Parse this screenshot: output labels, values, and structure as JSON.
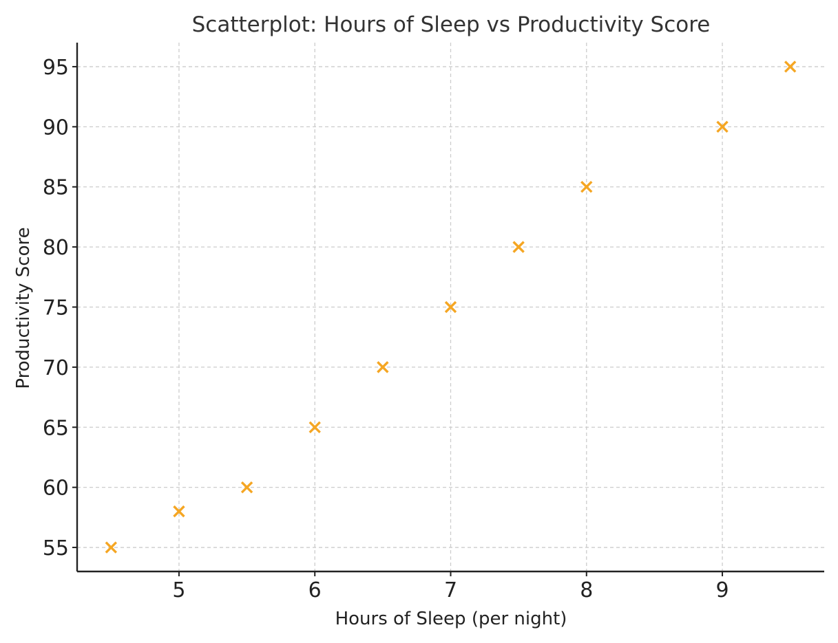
{
  "chart_data": {
    "type": "scatter",
    "title": "Scatterplot: Hours of Sleep vs Productivity Score",
    "xlabel": "Hours of Sleep (per night)",
    "ylabel": "Productivity Score",
    "xlim": [
      4.25,
      9.75
    ],
    "ylim": [
      53,
      97
    ],
    "xticks": [
      5,
      6,
      7,
      8,
      9
    ],
    "yticks": [
      55,
      60,
      65,
      70,
      75,
      80,
      85,
      90,
      95
    ],
    "grid": true,
    "marker": "x",
    "color": "#f5a623",
    "series": [
      {
        "name": "Productivity",
        "x": [
          4.5,
          5,
          5.5,
          6,
          6.5,
          7,
          7.5,
          8,
          9,
          9.5
        ],
        "y": [
          55,
          58,
          60,
          65,
          70,
          75,
          80,
          85,
          90,
          95
        ]
      }
    ]
  }
}
